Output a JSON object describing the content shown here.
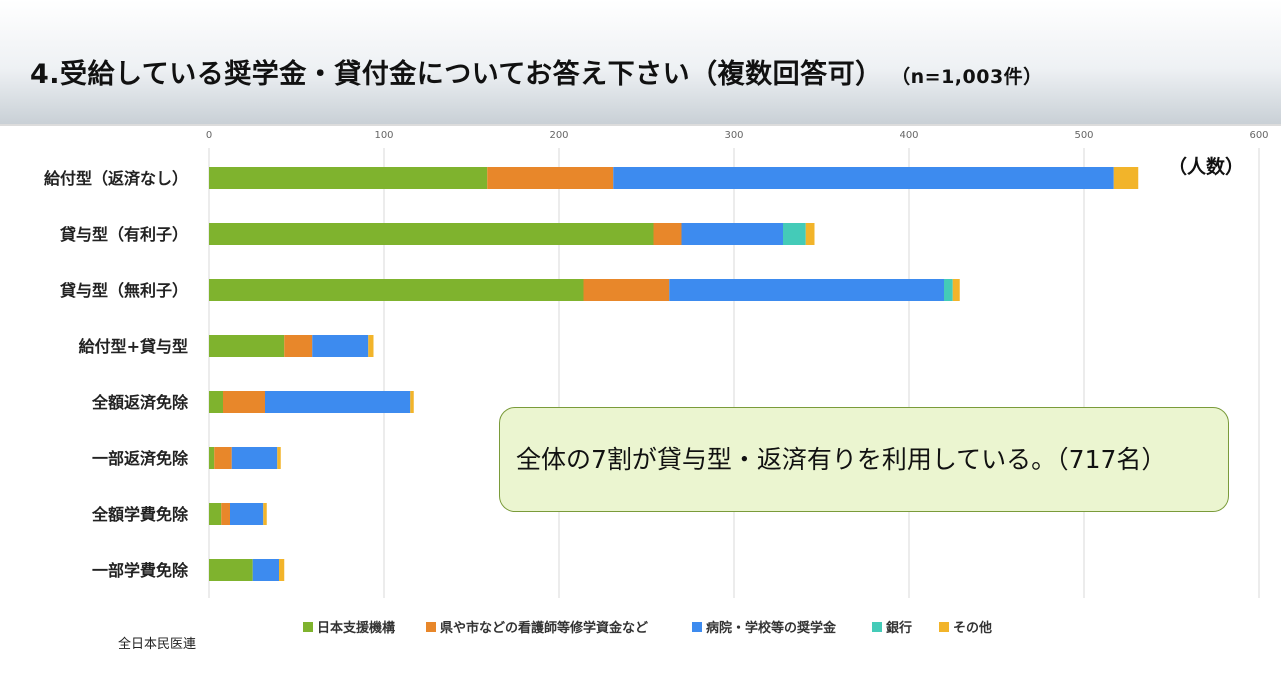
{
  "header": {
    "title": "4.受給している奨学金・貸付金についてお答え下さい（複数回答可）",
    "subtitle": "（n=1,003件）"
  },
  "chart_data": {
    "type": "bar",
    "orientation": "horizontal",
    "stacked": true,
    "unit_label": "（人数）",
    "categories": [
      "給付型（返済なし）",
      "貸与型（有利子）",
      "貸与型（無利子）",
      "給付型+貸与型",
      "全額返済免除",
      "一部返済免除",
      "全額学費免除",
      "一部学費免除"
    ],
    "xlim": [
      0,
      600
    ],
    "xticks": [
      0,
      100,
      200,
      300,
      400,
      500,
      600
    ],
    "grid": true,
    "legend_position": "bottom",
    "series": [
      {
        "name": "日本支援機構",
        "color": "#7fb32e",
        "values": [
          159,
          254,
          214,
          43,
          8,
          3,
          7,
          25
        ]
      },
      {
        "name": "県や市などの看護師等修学資金など",
        "color": "#e8872a",
        "values": [
          72,
          16,
          49,
          16,
          24,
          10,
          5,
          0
        ]
      },
      {
        "name": "病院・学校等の奨学金",
        "color": "#3d8bef",
        "values": [
          286,
          58,
          157,
          32,
          83,
          26,
          19,
          15
        ]
      },
      {
        "name": "銀行",
        "color": "#44cbb8",
        "values": [
          0,
          13,
          5,
          0,
          0,
          0,
          0,
          0
        ]
      },
      {
        "name": "その他",
        "color": "#f2b42a",
        "values": [
          14,
          5,
          4,
          3,
          2,
          2,
          2,
          3
        ]
      }
    ]
  },
  "callout": {
    "text": "全体の7割が貸与型・返済有りを利用している。（717名）"
  },
  "footer": {
    "source": "全日本民医連"
  }
}
